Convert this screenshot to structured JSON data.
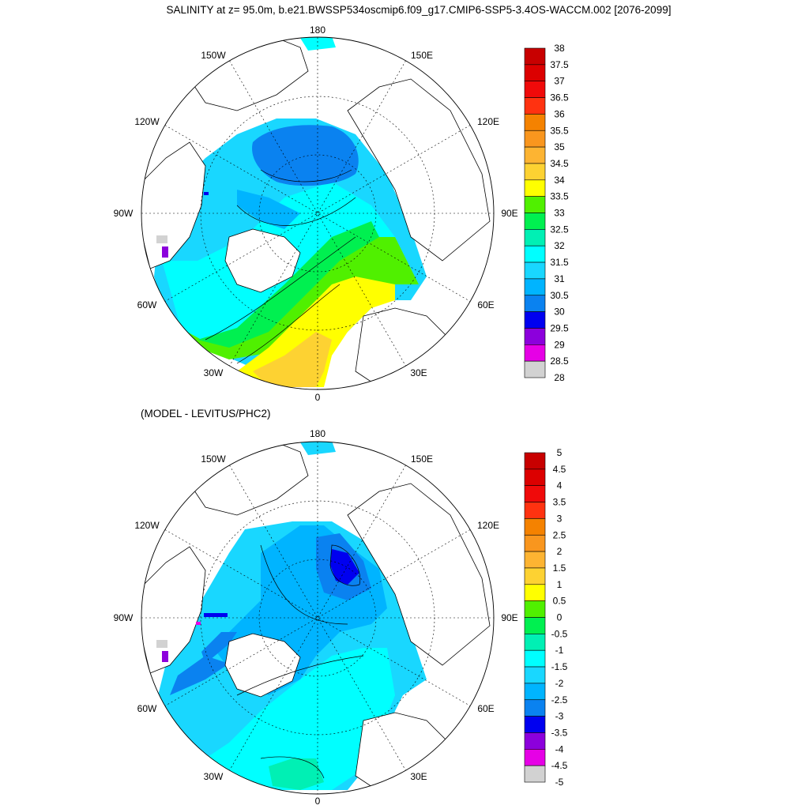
{
  "figure": {
    "title": "SALINITY at z=  95.0m, b.e21.BWSSP534oscmip6.f09_g17.CMIP6-SSP5-3.4OS-WACCM.002 [2076-2099]",
    "bottom_subtitle": "(MODEL - LEVITUS/PHC2)"
  },
  "maps": [
    {
      "id": "top",
      "lon_labels": {
        "n180": "180",
        "n150w": "150W",
        "n150e": "150E",
        "n120w": "120W",
        "n120e": "120E",
        "n90w": "90W",
        "n90e": "90E",
        "n60w": "60W",
        "n60e": "60E",
        "n30w": "30W",
        "n30e": "30E",
        "n0": "0"
      }
    },
    {
      "id": "bottom",
      "lon_labels": {
        "n180": "180",
        "n150w": "150W",
        "n150e": "150E",
        "n120w": "120W",
        "n120e": "120E",
        "n90w": "90W",
        "n90e": "90E",
        "n60w": "60W",
        "n60e": "60E",
        "n30w": "30W",
        "n30e": "30E",
        "n0": "0"
      }
    }
  ],
  "colorbars": [
    {
      "id": "top",
      "labels": [
        "38",
        "37.5",
        "37",
        "36.5",
        "36",
        "35.5",
        "35",
        "34.5",
        "34",
        "33.5",
        "33",
        "32.5",
        "32",
        "31.5",
        "31",
        "30.5",
        "30",
        "29.5",
        "29",
        "28.5",
        "28"
      ],
      "colors": [
        "#c80000",
        "#dc0000",
        "#f00a0a",
        "#ff3210",
        "#f58200",
        "#f9961e",
        "#fdb432",
        "#fdd232",
        "#ffff00",
        "#50f000",
        "#00f050",
        "#00f0b4",
        "#00ffff",
        "#19d7ff",
        "#00b4ff",
        "#0a82f0",
        "#0000f0",
        "#8c00dc",
        "#e600e6",
        "#d2d2d2",
        "#6e6e6e"
      ]
    },
    {
      "id": "bottom",
      "labels": [
        "5",
        "4.5",
        "4",
        "3.5",
        "3",
        "2.5",
        "2",
        "1.5",
        "1",
        "0.5",
        "0",
        "-0.5",
        "-1",
        "-1.5",
        "-2",
        "-2.5",
        "-3",
        "-3.5",
        "-4",
        "-4.5",
        "-5"
      ],
      "colors": [
        "#c80000",
        "#dc0000",
        "#f00a0a",
        "#ff3210",
        "#f58200",
        "#f9961e",
        "#fdb432",
        "#fdd232",
        "#ffff00",
        "#50f000",
        "#00f050",
        "#00f0b4",
        "#00ffff",
        "#19d7ff",
        "#00b4ff",
        "#0a82f0",
        "#0000f0",
        "#8c00dc",
        "#e600e6",
        "#d2d2d2",
        "#6e6e6e"
      ]
    }
  ]
}
